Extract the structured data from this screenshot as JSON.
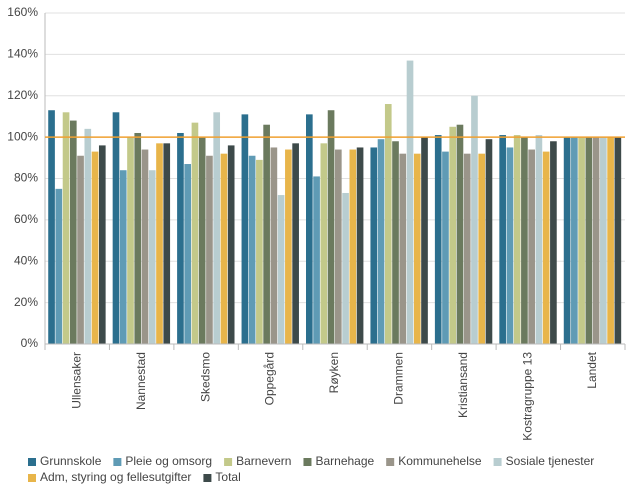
{
  "chart_data": {
    "type": "bar",
    "categories": [
      "Ullensaker",
      "Nannestad",
      "Skedsmo",
      "Oppegård",
      "Røyken",
      "Drammen",
      "Kristiansand",
      "Kostragruppe 13",
      "Landet"
    ],
    "series": [
      {
        "name": "Grunnskole",
        "color": "#2b6f8e",
        "values": [
          113,
          112,
          102,
          111,
          111,
          95,
          101,
          101,
          100
        ]
      },
      {
        "name": "Pleie og omsorg",
        "color": "#5f9bb5",
        "values": [
          75,
          84,
          87,
          91,
          81,
          99,
          93,
          95,
          100
        ]
      },
      {
        "name": "Barnevern",
        "color": "#c3c98a",
        "values": [
          112,
          100,
          107,
          89,
          97,
          116,
          105,
          101,
          100
        ]
      },
      {
        "name": "Barnehage",
        "color": "#6b7a5e",
        "values": [
          108,
          102,
          100,
          106,
          113,
          98,
          106,
          100,
          100
        ]
      },
      {
        "name": "Kommunehelse",
        "color": "#9a958a",
        "values": [
          91,
          94,
          91,
          95,
          94,
          92,
          92,
          94,
          100
        ]
      },
      {
        "name": "Sosiale tjenester",
        "color": "#b8cdd0",
        "values": [
          104,
          84,
          112,
          72,
          73,
          137,
          120,
          101,
          100
        ]
      },
      {
        "name": "Adm, styring og fellesutgifter",
        "color": "#e8b54a",
        "values": [
          93,
          97,
          92,
          94,
          94,
          92,
          92,
          93,
          100
        ]
      },
      {
        "name": "Total",
        "color": "#3d4a4a",
        "values": [
          96,
          97,
          96,
          97,
          95,
          100,
          99,
          98,
          100
        ]
      }
    ],
    "ylim": [
      0,
      160
    ],
    "yticks": [
      {
        "value": 0,
        "label": "0%"
      },
      {
        "value": 20,
        "label": "20%"
      },
      {
        "value": 40,
        "label": "40%"
      },
      {
        "value": 60,
        "label": "60%"
      },
      {
        "value": 80,
        "label": "80%"
      },
      {
        "value": 100,
        "label": "100%"
      },
      {
        "value": 120,
        "label": "120%"
      },
      {
        "value": 140,
        "label": "140%"
      },
      {
        "value": 160,
        "label": "160%"
      }
    ],
    "grid": true,
    "reference_line": {
      "value": 100,
      "color": "#f0a030"
    },
    "legend": "bottom"
  }
}
